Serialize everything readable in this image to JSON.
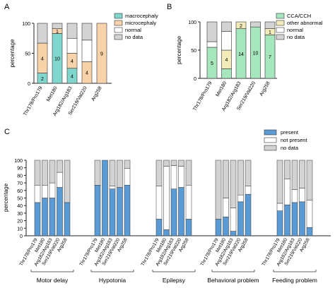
{
  "chart_data": [
    {
      "type": "bar",
      "panel_label": "A",
      "ylabel": "percentage",
      "ylim": [
        0,
        100
      ],
      "yticks": [
        0,
        50,
        100
      ],
      "categories": [
        "Thr178/Pro179",
        "Met180",
        "Arg182/Arg183",
        "Ser219/Val220",
        "Arg258"
      ],
      "series": [
        {
          "name": "macrocephaly",
          "color": "#7fd6cc",
          "values": [
            17,
            83,
            25,
            0,
            0
          ],
          "labels": [
            "2",
            "10",
            "4",
            "",
            ""
          ]
        },
        {
          "name": "microcephaly",
          "color": "#f8d2a8",
          "values": [
            50,
            8,
            25,
            36,
            100
          ],
          "labels": [
            "4",
            "1",
            "4",
            "4",
            "9"
          ]
        },
        {
          "name": "normal",
          "color": "#ffffff",
          "values": [
            0,
            0,
            25,
            36,
            0
          ],
          "labels": [
            "",
            "",
            "",
            "",
            ""
          ]
        },
        {
          "name": "no data",
          "color": "#d3d3d3",
          "values": [
            33,
            9,
            25,
            28,
            0
          ],
          "labels": [
            "",
            "",
            "",
            "",
            ""
          ]
        }
      ]
    },
    {
      "type": "bar",
      "panel_label": "B",
      "ylabel": "percentage",
      "ylim": [
        0,
        100
      ],
      "yticks": [
        0,
        50,
        100
      ],
      "categories": [
        "Thr178/Pro179",
        "Met180",
        "Arg182/Arg183",
        "Ser219/Val220",
        "Arg258"
      ],
      "series": [
        {
          "name": "CCA/CCH",
          "color": "#a6e6bd",
          "values": [
            55,
            17,
            88,
            91,
            77
          ],
          "labels": [
            "5",
            "",
            "14",
            "10",
            "7"
          ]
        },
        {
          "name": "other abnormal",
          "color": "#f3ebba",
          "values": [
            0,
            33,
            12,
            0,
            11
          ],
          "labels": [
            "",
            "4",
            "2",
            "",
            "1"
          ]
        },
        {
          "name": "normal",
          "color": "#ffffff",
          "values": [
            10,
            33,
            0,
            0,
            0
          ],
          "labels": [
            "",
            "",
            "",
            "",
            ""
          ]
        },
        {
          "name": "no data",
          "color": "#d3d3d3",
          "values": [
            35,
            17,
            0,
            9,
            12
          ],
          "labels": [
            "",
            "",
            "",
            "",
            ""
          ]
        }
      ]
    },
    {
      "type": "bar",
      "panel_label": "C",
      "ylabel": "percentage",
      "ylim": [
        0,
        100
      ],
      "yticks": [
        0,
        10,
        20,
        30,
        40,
        50,
        60,
        70,
        80,
        90,
        100
      ],
      "categories": [
        "Thr178/Pro179",
        "Met180",
        "Arg182/Arg183",
        "Ser219/Val220",
        "Arg258"
      ],
      "groups": [
        "Motor delay",
        "Hypotonia",
        "Epilepsy",
        "Behavioral problem",
        "Feeding problem"
      ],
      "series_names": [
        "present",
        "not present",
        "no data"
      ],
      "series_colors": [
        "#5b9bd5",
        "#ffffff",
        "#d3d3d3"
      ],
      "data": [
        {
          "group": "Motor delay",
          "present": [
            44,
            50,
            50,
            64,
            44
          ],
          "not_present": [
            23,
            17,
            20,
            20,
            0
          ]
        },
        {
          "group": "Hypotonia",
          "present": [
            67,
            100,
            62,
            64,
            67
          ],
          "not_present": [
            0,
            0,
            4,
            0,
            22
          ]
        },
        {
          "group": "Epilepsy",
          "present": [
            22,
            8,
            62,
            64,
            22
          ],
          "not_present": [
            44,
            84,
            31,
            28,
            45
          ]
        },
        {
          "group": "Behavioral problem",
          "present": [
            22,
            25,
            6,
            45,
            55
          ],
          "not_present": [
            0,
            25,
            31,
            9,
            11
          ]
        },
        {
          "group": "Feeding problem",
          "present": [
            33,
            41,
            44,
            45,
            11
          ],
          "not_present": [
            10,
            34,
            17,
            18,
            36
          ]
        }
      ]
    }
  ]
}
